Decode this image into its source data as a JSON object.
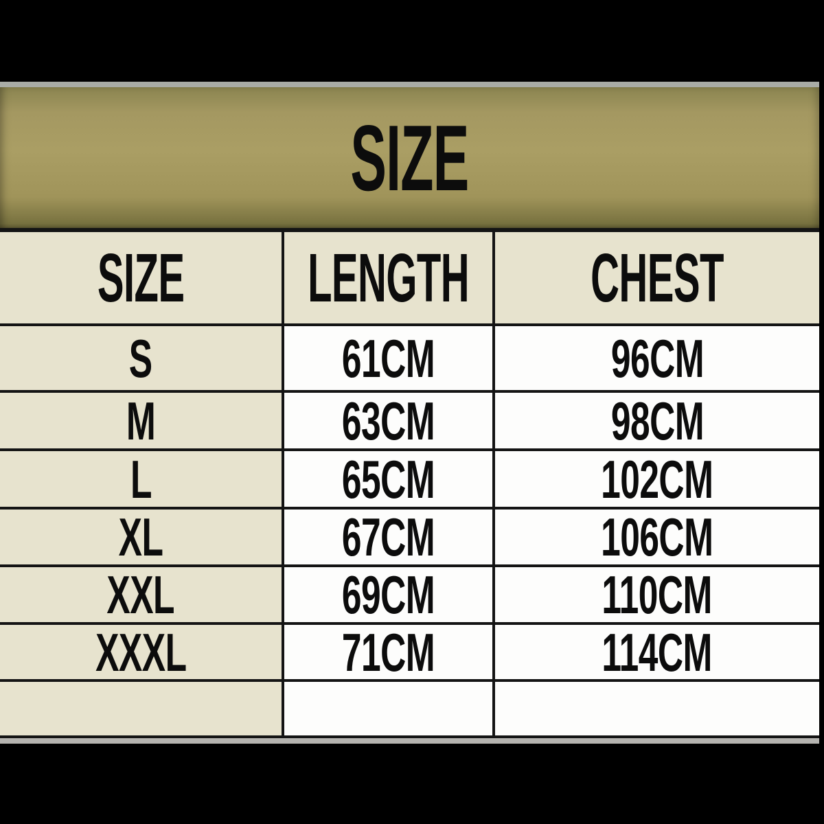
{
  "title": "SIZE",
  "table": {
    "headers": [
      "SIZE",
      "LENGTH",
      "CHEST"
    ],
    "rows": [
      {
        "size": "S",
        "length": "61CM",
        "chest": "96CM"
      },
      {
        "size": "M",
        "length": "63CM",
        "chest": "98CM"
      },
      {
        "size": "L",
        "length": "65CM",
        "chest": "102CM"
      },
      {
        "size": "XL",
        "length": "67CM",
        "chest": "106CM"
      },
      {
        "size": "XXL",
        "length": "69CM",
        "chest": "110CM"
      },
      {
        "size": "XXXL",
        "length": "71CM",
        "chest": "114CM"
      }
    ]
  },
  "colors": {
    "background": "#000000",
    "title_band": "#a49861",
    "cream_cell": "#e7e3ce",
    "white_cell": "#fdfdfc",
    "border": "#141414",
    "text": "#0c0c0c",
    "top_line": "#a9aca6",
    "bottom_strip": "#b5b4b0"
  },
  "chart_data": {
    "type": "table",
    "title": "SIZE",
    "columns": [
      "SIZE",
      "LENGTH",
      "CHEST"
    ],
    "rows": [
      [
        "S",
        "61CM",
        "96CM"
      ],
      [
        "M",
        "63CM",
        "98CM"
      ],
      [
        "L",
        "65CM",
        "102CM"
      ],
      [
        "XL",
        "67CM",
        "106CM"
      ],
      [
        "XXL",
        "69CM",
        "110CM"
      ],
      [
        "XXXL",
        "71CM",
        "114CM"
      ]
    ],
    "sizes": [
      "S",
      "M",
      "L",
      "XL",
      "XXL",
      "XXXL"
    ],
    "length_cm": [
      61,
      63,
      65,
      67,
      69,
      71
    ],
    "chest_cm": [
      96,
      98,
      102,
      106,
      110,
      114
    ],
    "units": "CM"
  }
}
